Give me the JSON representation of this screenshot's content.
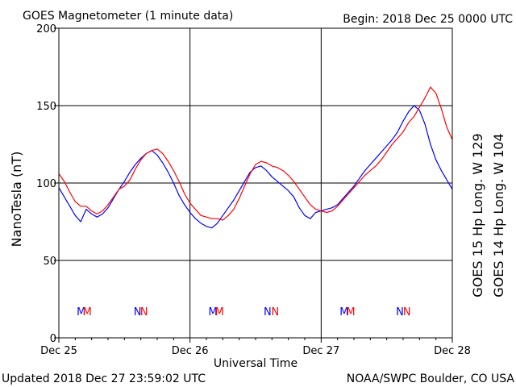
{
  "header": {
    "title": "GOES Magnetometer (1 minute data)",
    "begin": "Begin:  2018 Dec 25 0000 UTC"
  },
  "footer": {
    "updated": "Updated 2018 Dec 27 23:59:02 UTC",
    "credit": "NOAA/SWPC Boulder, CO USA"
  },
  "colors": {
    "goes15": "#ff0000",
    "goes14": "#0000ff"
  },
  "chart_data": {
    "type": "line",
    "title": "GOES Magnetometer (1 minute data)",
    "xlabel": "Universal Time",
    "ylabel": "NanoTesla (nT)",
    "xlim": [
      0,
      72
    ],
    "ylim": [
      0,
      200
    ],
    "x_unit": "hours since 2018 Dec 25 0000 UTC",
    "x_ticks": [
      {
        "x": 0,
        "label": "Dec 25"
      },
      {
        "x": 24,
        "label": "Dec 26"
      },
      {
        "x": 48,
        "label": "Dec 27"
      },
      {
        "x": 72,
        "label": "Dec 28"
      }
    ],
    "y_ticks": [
      0,
      50,
      100,
      150,
      200
    ],
    "grid": true,
    "legend": [
      {
        "name": "GOES 15 Hp  Long. W 129",
        "color": "#ff0000"
      },
      {
        "name": "GOES 14 Hp  Long. W 104",
        "color": "#0000ff"
      }
    ],
    "series": [
      {
        "name": "GOES 15 Hp  Long. W 129",
        "color": "#ff0000",
        "x": [
          0,
          1,
          2,
          3,
          4,
          5,
          6,
          7,
          8,
          9,
          10,
          11,
          12,
          13,
          14,
          15,
          16,
          17,
          18,
          19,
          20,
          21,
          22,
          23,
          24,
          25,
          26,
          27,
          28,
          29,
          30,
          31,
          32,
          33,
          34,
          35,
          36,
          37,
          38,
          39,
          40,
          41,
          42,
          43,
          44,
          45,
          46,
          47,
          48,
          49,
          50,
          51,
          52,
          53,
          54,
          55,
          56,
          57,
          58,
          59,
          60,
          61,
          62,
          63,
          64,
          65,
          66,
          67,
          68,
          69,
          70,
          71,
          72
        ],
        "y": [
          106,
          101,
          94,
          88,
          85,
          85,
          82,
          80,
          82,
          86,
          91,
          96,
          98,
          102,
          109,
          115,
          119,
          121,
          122,
          119,
          114,
          108,
          101,
          93,
          87,
          83,
          79,
          78,
          77,
          77,
          76,
          79,
          83,
          90,
          98,
          106,
          112,
          114,
          113,
          111,
          110,
          108,
          105,
          101,
          96,
          91,
          86,
          83,
          82,
          81,
          82,
          85,
          89,
          93,
          97,
          101,
          105,
          108,
          111,
          115,
          120,
          125,
          129,
          133,
          139,
          143,
          149,
          155,
          162,
          158,
          148,
          136,
          128
        ]
      },
      {
        "name": "GOES 14 Hp  Long. W 104",
        "color": "#0000ff",
        "x": [
          0,
          1,
          2,
          3,
          4,
          5,
          6,
          7,
          8,
          9,
          10,
          11,
          12,
          13,
          14,
          15,
          16,
          17,
          18,
          19,
          20,
          21,
          22,
          23,
          24,
          25,
          26,
          27,
          28,
          29,
          30,
          31,
          32,
          33,
          34,
          35,
          36,
          37,
          38,
          39,
          40,
          41,
          42,
          43,
          44,
          45,
          46,
          47,
          48,
          49,
          50,
          51,
          52,
          53,
          54,
          55,
          56,
          57,
          58,
          59,
          60,
          61,
          62,
          63,
          64,
          65,
          66,
          67,
          68,
          69,
          70,
          71,
          72
        ],
        "y": [
          97,
          91,
          85,
          79,
          75,
          83,
          80,
          78,
          80,
          84,
          90,
          96,
          101,
          107,
          112,
          116,
          119,
          121,
          118,
          113,
          107,
          100,
          92,
          86,
          81,
          77,
          74,
          72,
          71,
          74,
          79,
          84,
          89,
          95,
          101,
          107,
          110,
          111,
          108,
          104,
          101,
          98,
          95,
          91,
          84,
          79,
          77,
          81,
          82,
          83,
          84,
          86,
          90,
          94,
          98,
          103,
          108,
          112,
          116,
          120,
          124,
          128,
          133,
          140,
          146,
          150,
          147,
          138,
          125,
          115,
          108,
          102,
          96
        ]
      }
    ],
    "annotations": [
      {
        "text": "M",
        "x": 4.1,
        "color": "#0000ff"
      },
      {
        "text": "M",
        "x": 5.2,
        "color": "#ff0000"
      },
      {
        "text": "N",
        "x": 14.4,
        "color": "#0000ff"
      },
      {
        "text": "N",
        "x": 15.6,
        "color": "#ff0000"
      },
      {
        "text": "M",
        "x": 28.2,
        "color": "#0000ff"
      },
      {
        "text": "M",
        "x": 29.4,
        "color": "#ff0000"
      },
      {
        "text": "N",
        "x": 38.2,
        "color": "#0000ff"
      },
      {
        "text": "N",
        "x": 39.6,
        "color": "#ff0000"
      },
      {
        "text": "M",
        "x": 52.2,
        "color": "#0000ff"
      },
      {
        "text": "M",
        "x": 53.4,
        "color": "#ff0000"
      },
      {
        "text": "N",
        "x": 62.4,
        "color": "#0000ff"
      },
      {
        "text": "N",
        "x": 63.7,
        "color": "#ff0000"
      }
    ]
  }
}
